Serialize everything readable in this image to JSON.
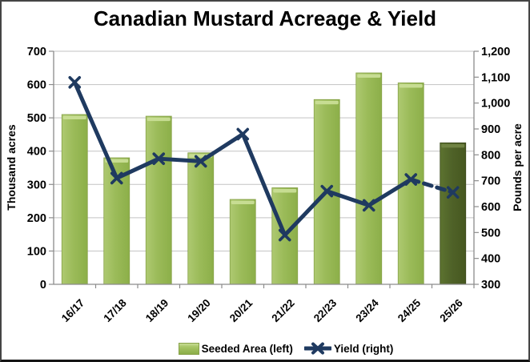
{
  "title": "Canadian Mustard Acreage & Yield",
  "legend": {
    "seeded_label": "Seeded Area (left)",
    "yield_label": "Yield (right)"
  },
  "colors": {
    "bar_green": "#9BBB59",
    "bar_green_dark_edge": "#8caf49",
    "bar_green_highlight": "#c9de96",
    "bar_forecast_dark_green": "#4F6228",
    "bar_forecast_highlight": "#728545",
    "line_navy": "#1F3A60",
    "gridline_gray": "#C3C3C3",
    "axis_gray": "#8C8C8C",
    "text_black": "#000000",
    "background": "#FFFFFF"
  },
  "chart_data": {
    "type": "combo-bar-line",
    "categories": [
      "16/17",
      "17/18",
      "18/19",
      "19/20",
      "20/21",
      "21/22",
      "22/23",
      "23/24",
      "24/25",
      "25/26"
    ],
    "series": [
      {
        "name": "Seeded Area (left)",
        "type": "bar",
        "axis": "left",
        "values": [
          510,
          380,
          505,
          395,
          255,
          290,
          555,
          635,
          605,
          425
        ],
        "dark_last_bar": true
      },
      {
        "name": "Yield (right)",
        "type": "line",
        "axis": "right",
        "marker": "x",
        "values": [
          1080,
          710,
          785,
          775,
          880,
          490,
          660,
          605,
          705,
          655
        ],
        "dashed_last_segment": true
      }
    ],
    "left_axis": {
      "title": "Thousand acres",
      "min": 0,
      "max": 700,
      "step": 100,
      "tick_labels": [
        "0",
        "100",
        "200",
        "300",
        "400",
        "500",
        "600",
        "700"
      ]
    },
    "right_axis": {
      "title": "Pounds per acre",
      "min": 300,
      "max": 1200,
      "step": 100,
      "tick_labels": [
        "300",
        "400",
        "500",
        "600",
        "700",
        "800",
        "900",
        "1,000",
        "1,100",
        "1,200"
      ]
    },
    "grid": true,
    "legend_position": "bottom"
  }
}
